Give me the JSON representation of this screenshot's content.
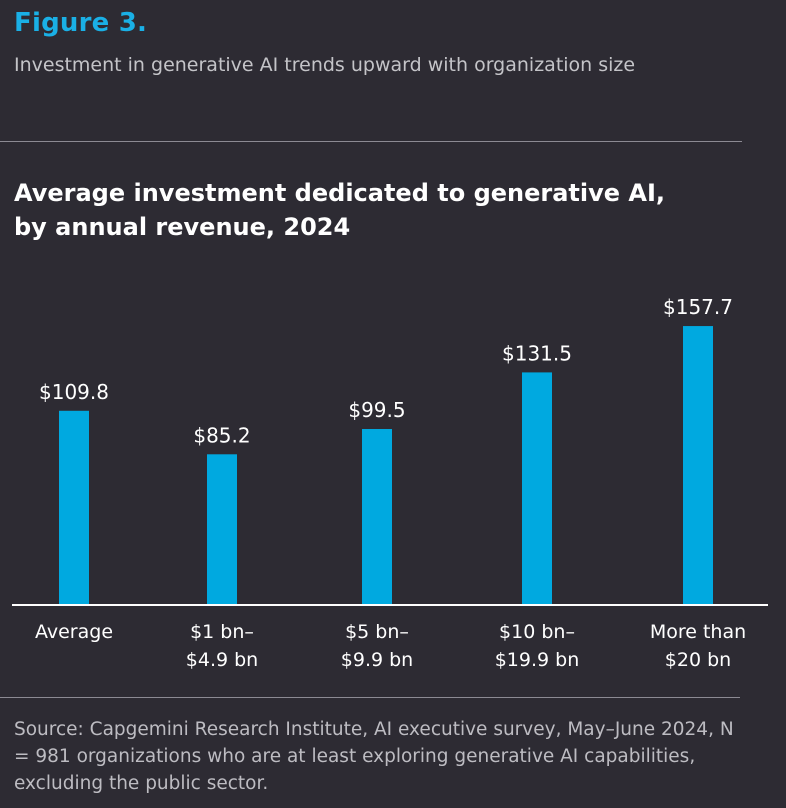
{
  "header": {
    "figure_label": "Figure 3.",
    "subtitle": "Investment in generative AI trends upward with organization size"
  },
  "colors": {
    "background": "#2d2b33",
    "accent": "#1ab0e6",
    "bar": "#00a9e0",
    "axis": "#ffffff"
  },
  "chart_data": {
    "type": "bar",
    "title_lines": [
      "Average investment dedicated to generative AI,",
      "by annual revenue, 2024"
    ],
    "categories": [
      [
        "Average"
      ],
      [
        "$1 bn–",
        "$4.9 bn"
      ],
      [
        "$5 bn–",
        "$9.9 bn"
      ],
      [
        "$10 bn–",
        "$19.9 bn"
      ],
      [
        "More than",
        "$20 bn"
      ]
    ],
    "values": [
      109.8,
      85.2,
      99.5,
      131.5,
      157.7
    ],
    "value_labels": [
      "$109.8",
      "$85.2",
      "$99.5",
      "$131.5",
      "$157.7"
    ],
    "ylim": [
      0,
      160
    ],
    "xlabel": "",
    "ylabel": "",
    "grid": false,
    "legend": "none"
  },
  "footer": {
    "source": "Source: Capgemini Research Institute, AI executive survey, May–June 2024, N = 981 organizations who are at least exploring generative AI capabilities, excluding the public sector."
  }
}
